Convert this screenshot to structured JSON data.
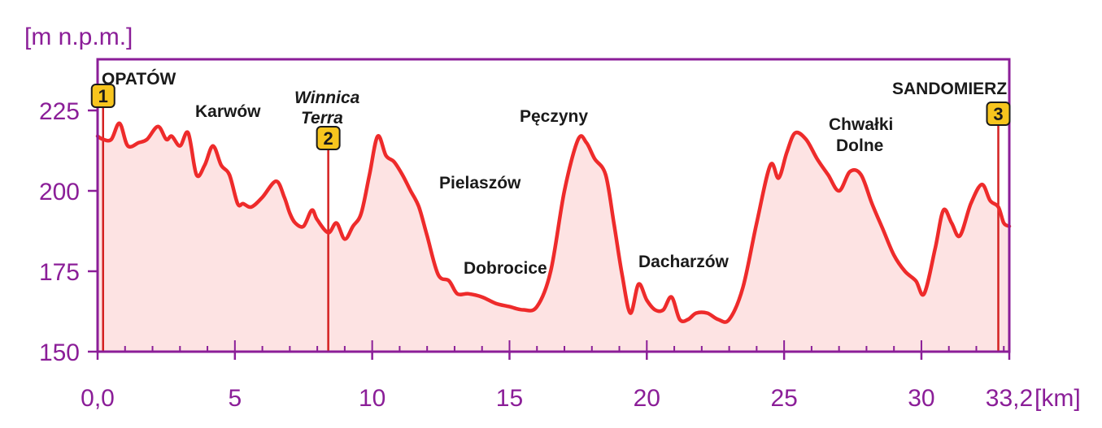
{
  "chart_data": {
    "type": "area",
    "ylabel": "[m n.p.m.]",
    "xunit": "[km]",
    "xlim": [
      0,
      33.2
    ],
    "ylim": [
      150,
      240
    ],
    "x_ticks": [
      0,
      5,
      10,
      15,
      20,
      25,
      30,
      33.2
    ],
    "x_tick_labels": [
      "0,0",
      "5",
      "10",
      "15",
      "20",
      "25",
      "30",
      "33,2"
    ],
    "y_ticks": [
      150,
      175,
      200,
      225
    ],
    "y_tick_labels": [
      "150",
      "175",
      "200",
      "225"
    ],
    "grid": false,
    "colors": {
      "line": "#ee2b2b",
      "fill": "#fde3e3",
      "axis": "#8b1e98",
      "marker": "#f7c51e",
      "marker_line": "#d42121"
    },
    "series": [
      {
        "x": [
          0,
          0.2,
          0.5,
          0.8,
          1.1,
          1.5,
          1.8,
          2.2,
          2.5,
          2.7,
          3.0,
          3.3,
          3.6,
          3.9,
          4.2,
          4.5,
          4.8,
          5.1,
          5.3,
          5.6,
          6.0,
          6.5,
          6.8,
          7.0,
          7.2,
          7.5,
          7.8,
          8.0,
          8.4,
          8.7,
          9.0,
          9.3,
          9.6,
          9.9,
          10.2,
          10.5,
          10.8,
          11.1,
          11.4,
          11.7,
          12.0,
          12.4,
          12.8,
          13.1,
          13.5,
          14.0,
          14.5,
          15.0,
          15.5,
          16.0,
          16.5,
          17.0,
          17.5,
          17.8,
          18.1,
          18.5,
          18.8,
          19.1,
          19.4,
          19.7,
          20.0,
          20.3,
          20.6,
          20.9,
          21.2,
          21.5,
          21.8,
          22.2,
          22.6,
          23.0,
          23.5,
          24.0,
          24.5,
          24.8,
          25.1,
          25.4,
          25.8,
          26.2,
          26.6,
          27.0,
          27.4,
          27.8,
          28.2,
          28.6,
          29.0,
          29.4,
          29.8,
          30.1,
          30.5,
          30.8,
          31.1,
          31.4,
          31.8,
          32.2,
          32.5,
          32.8,
          33.0,
          33.2
        ],
        "y": [
          217,
          216,
          216,
          221,
          214,
          215,
          216,
          220,
          216,
          217,
          214,
          218,
          205,
          208,
          214,
          208,
          205,
          196,
          196,
          195,
          198,
          203,
          198,
          193,
          190,
          189,
          194,
          191,
          187,
          190,
          185,
          189,
          193,
          205,
          217,
          211,
          209,
          205,
          200,
          195,
          186,
          174,
          172,
          168,
          168,
          167,
          165,
          164,
          163,
          164,
          175,
          200,
          216,
          215,
          210,
          205,
          190,
          174,
          162,
          171,
          166,
          163,
          163,
          167,
          160,
          160,
          162,
          162,
          160,
          160,
          170,
          190,
          208,
          204,
          212,
          218,
          216,
          210,
          205,
          200,
          206,
          205,
          196,
          188,
          180,
          175,
          172,
          168,
          182,
          194,
          190,
          186,
          196,
          202,
          197,
          195,
          190,
          189
        ]
      }
    ],
    "places": [
      {
        "name": "OPATÓW",
        "style": "upper"
      },
      {
        "name": "Karwów"
      },
      {
        "name": "Winnica",
        "style": "italic"
      },
      {
        "name": "Terra",
        "style": "italic"
      },
      {
        "name": "Pielaszów"
      },
      {
        "name": "Dobrocice"
      },
      {
        "name": "Pęczyny"
      },
      {
        "name": "Dacharzów"
      },
      {
        "name": "Chwałki"
      },
      {
        "name": "Dolne"
      },
      {
        "name": "SANDOMIERZ",
        "style": "upper"
      }
    ],
    "markers": [
      {
        "label": "1",
        "x": 0.2
      },
      {
        "label": "2",
        "x": 8.4
      },
      {
        "label": "3",
        "x": 32.8
      }
    ]
  }
}
